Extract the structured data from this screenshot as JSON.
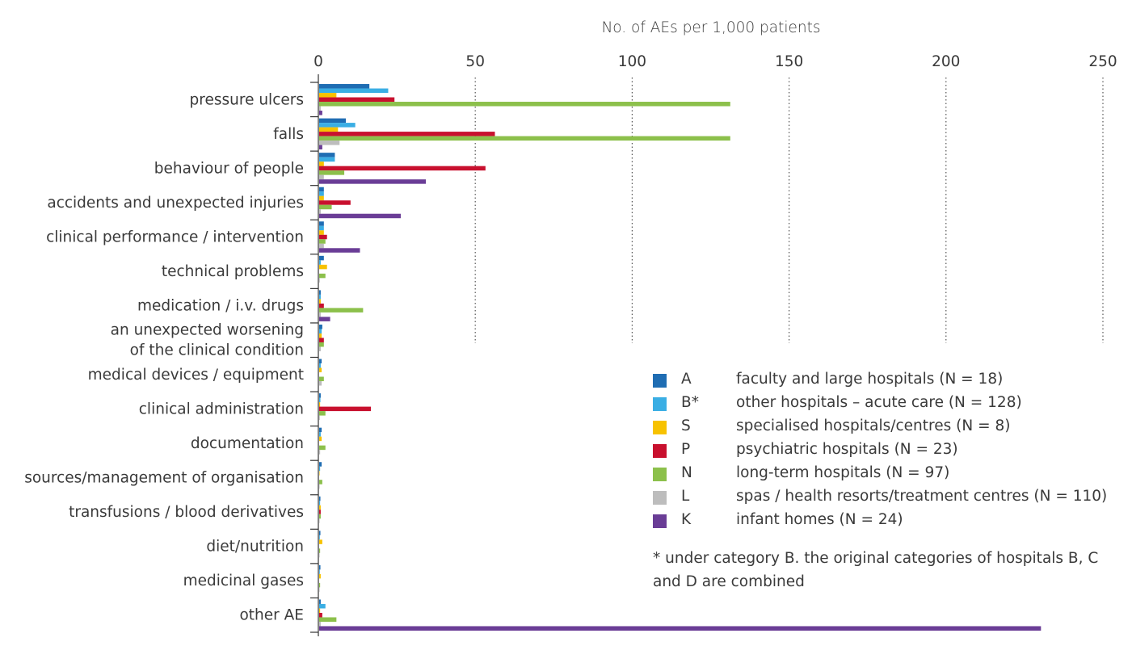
{
  "chart_data": {
    "type": "bar",
    "orientation": "horizontal",
    "title": "",
    "xlabel": "No. of AEs per 1,000 patients",
    "ylabel": "",
    "xlim": [
      0,
      250
    ],
    "xticks": [
      "0",
      "50",
      "100",
      "150",
      "200",
      "250"
    ],
    "grid": "vertical dotted",
    "legend_position": "bottom-right",
    "categories": [
      "pressure ulcers",
      "falls",
      "behaviour of people",
      "accidents and unexpected injuries",
      "clinical performance / intervention",
      "technical problems",
      "medication / i.v. drugs",
      "an unexpected worsening|of the clinical condition",
      "medical devices / equipment",
      "clinical administration",
      "documentation",
      "sources/management of organisation",
      "transfusions / blood derivatives",
      "diet/nutrition",
      "medicinal gases",
      "other AE"
    ],
    "series": [
      {
        "name": "A",
        "label": "faculty and large hospitals (N = 18)",
        "color": "#1f6db3",
        "values": [
          16,
          8.5,
          5,
          1.5,
          1.5,
          1.5,
          0.5,
          1,
          0.8,
          0.5,
          0.8,
          0.8,
          0.4,
          0.4,
          0.4,
          0.5
        ]
      },
      {
        "name": "B*",
        "label": "other hospitals – acute care (N = 128)",
        "color": "#3aaee4",
        "values": [
          22,
          11.5,
          5,
          1.5,
          1.5,
          0.5,
          0.5,
          0.8,
          0.5,
          0.4,
          0.5,
          0.3,
          0.3,
          0.2,
          0.2,
          2
        ]
      },
      {
        "name": "S",
        "label": "specialised hospitals/centres (N = 8)",
        "color": "#f7c200",
        "values": [
          5.5,
          6,
          1.5,
          1.5,
          1.5,
          2.5,
          0.5,
          0.8,
          0.8,
          0.3,
          0.8,
          0.1,
          0.5,
          1,
          0.5,
          0.3
        ]
      },
      {
        "name": "P",
        "label": "psychiatric hospitals (N = 23)",
        "color": "#c8102e",
        "values": [
          24,
          56,
          53,
          10,
          2.5,
          0,
          1.5,
          1.5,
          0,
          16.5,
          0,
          0,
          0.5,
          0,
          0,
          1
        ]
      },
      {
        "name": "N",
        "label": "long-term hospitals (N = 97)",
        "color": "#8cc04b",
        "values": [
          131,
          131,
          8,
          4,
          2,
          2,
          14,
          1.5,
          1.5,
          2,
          2,
          1,
          0.5,
          0.3,
          0.3,
          5.5
        ]
      },
      {
        "name": "L",
        "label": "spas / health resorts/treatment centres (N = 110)",
        "color": "#bdbdbd",
        "values": [
          0.5,
          6.5,
          1.5,
          0.5,
          1.5,
          0.2,
          0.5,
          0.5,
          0.8,
          0.2,
          0.3,
          0.1,
          0.1,
          0.1,
          0.1,
          0.5
        ]
      },
      {
        "name": "K",
        "label": "infant homes (N = 24)",
        "color": "#6a3d96",
        "values": [
          1,
          1,
          34,
          26,
          13,
          0,
          3.5,
          0,
          0,
          0,
          0,
          0,
          0,
          0,
          0,
          230
        ]
      }
    ]
  },
  "legend_note": "* under category B. the original categories of hospitals B, C and D are combined"
}
